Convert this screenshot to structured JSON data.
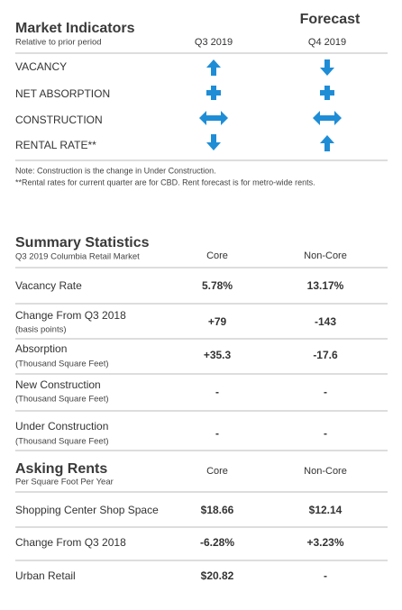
{
  "market_indicators": {
    "title": "Market Indicators",
    "subtitle": "Relative to prior period",
    "forecast_label": "Forecast",
    "columns": [
      "Q3 2019",
      "Q4 2019"
    ],
    "rows": [
      "VACANCY",
      "NET ABSORPTION",
      "CONSTRUCTION",
      "RENTAL RATE**"
    ],
    "notes": [
      "Note: Construction is the change in Under Construction.",
      "**Rental rates for current quarter are for CBD. Rent forecast is for metro-wide rents."
    ]
  },
  "summary_statistics": {
    "title": "Summary Statistics",
    "subtitle": "Q3 2019 Columbia Retail Market",
    "columns": [
      "Core",
      "Non-Core"
    ],
    "rows": [
      {
        "label": "Vacancy Rate",
        "values": [
          "5.78%",
          "13.17%"
        ]
      },
      {
        "label": "Change From Q3 2018",
        "sublabel": "(basis points)",
        "values": [
          "+79",
          "-143"
        ]
      },
      {
        "label": "Absorption",
        "sublabel": "(Thousand Square Feet)",
        "values": [
          "+35.3",
          "-17.6"
        ]
      },
      {
        "label": "New Construction",
        "sublabel": "(Thousand Square Feet)",
        "values": [
          "-",
          "-"
        ]
      },
      {
        "label": "Under Construction",
        "sublabel": "(Thousand Square Feet)",
        "values": [
          "-",
          "-"
        ]
      }
    ]
  },
  "asking_rents": {
    "title": "Asking Rents",
    "subtitle": "Per Square Foot Per Year",
    "columns": [
      "Core",
      "Non-Core"
    ],
    "rows": [
      {
        "label": "Shopping Center Shop Space",
        "values": [
          "$18.66",
          "$12.14"
        ]
      },
      {
        "label": "Change From Q3 2018",
        "values": [
          "-6.28%",
          "+3.23%"
        ]
      },
      {
        "label": "Urban Retail",
        "values": [
          "$20.82",
          "-"
        ]
      }
    ]
  }
}
